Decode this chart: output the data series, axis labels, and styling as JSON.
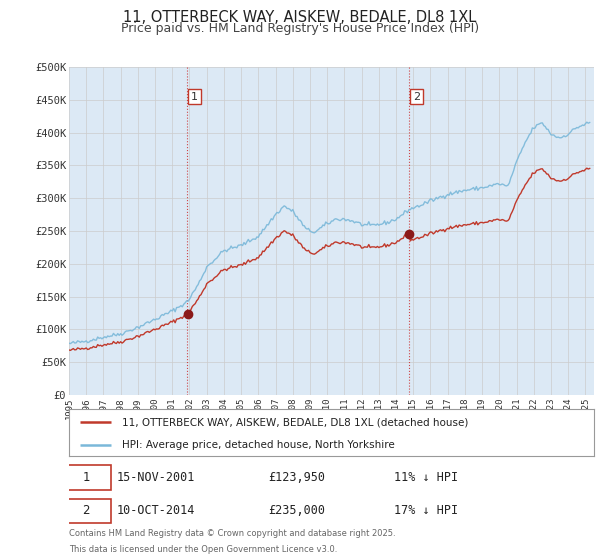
{
  "title": "11, OTTERBECK WAY, AISKEW, BEDALE, DL8 1XL",
  "subtitle": "Price paid vs. HM Land Registry's House Price Index (HPI)",
  "bg_color": "#dce9f5",
  "hpi_color": "#7ab8d9",
  "price_color": "#c0392b",
  "sale1_date": "15-NOV-2001",
  "sale1_price": 123950,
  "sale2_date": "10-OCT-2014",
  "sale2_price": 235000,
  "sale1_hpi_diff": "11% ↓ HPI",
  "sale2_hpi_diff": "17% ↓ HPI",
  "vline1_x": 2001.88,
  "vline2_x": 2014.78,
  "xmin": 1995,
  "xmax": 2025.5,
  "ymin": 0,
  "ymax": 500000,
  "yticks": [
    0,
    50000,
    100000,
    150000,
    200000,
    250000,
    300000,
    350000,
    400000,
    450000,
    500000
  ],
  "ylabel_labels": [
    "£0",
    "£50K",
    "£100K",
    "£150K",
    "£200K",
    "£250K",
    "£300K",
    "£350K",
    "£400K",
    "£450K",
    "£500K"
  ],
  "footnote_line1": "Contains HM Land Registry data © Crown copyright and database right 2025.",
  "footnote_line2": "This data is licensed under the Open Government Licence v3.0.",
  "legend_label1": "11, OTTERBECK WAY, AISKEW, BEDALE, DL8 1XL (detached house)",
  "legend_label2": "HPI: Average price, detached house, North Yorkshire"
}
